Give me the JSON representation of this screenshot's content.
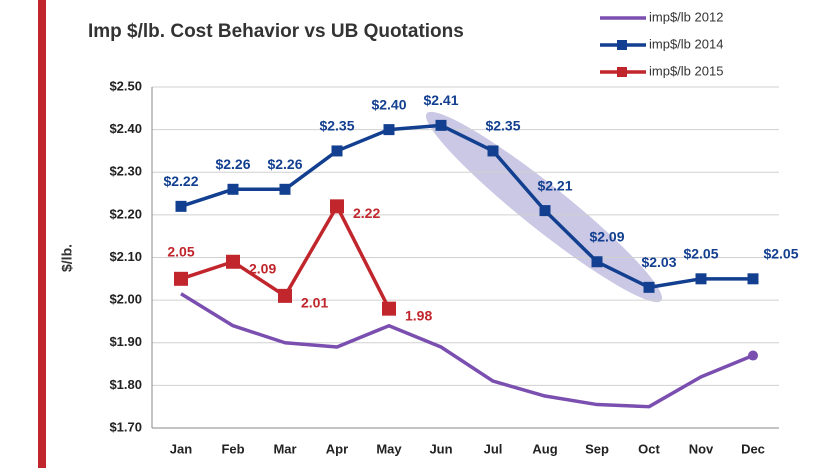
{
  "chart_data": {
    "type": "line",
    "title": "Imp $/lb. Cost Behavior vs UB Quotations",
    "y_label": "$/lb.",
    "categories": [
      "Jan",
      "Feb",
      "Mar",
      "Apr",
      "May",
      "Jun",
      "Jul",
      "Aug",
      "Sep",
      "Oct",
      "Nov",
      "Dec"
    ],
    "series": [
      {
        "name": "imp$/lb 2012",
        "color": "#7b4fb0",
        "marker": "none",
        "values": [
          2.015,
          1.94,
          1.9,
          1.89,
          1.94,
          1.89,
          1.81,
          1.775,
          1.755,
          1.75,
          1.82,
          1.87
        ]
      },
      {
        "name": "imp$/lb 2014",
        "color": "#123f8f",
        "marker": "square",
        "values": [
          2.22,
          2.26,
          2.26,
          2.35,
          2.4,
          2.41,
          2.35,
          2.21,
          2.09,
          2.03,
          2.05,
          2.05
        ],
        "value_labels": [
          "$2.22",
          "$2.26",
          "$2.26",
          "$2.35",
          "$2.40",
          "$2.41",
          "$2.35",
          "$2.21",
          "$2.09",
          "$2.03",
          "$2.05",
          "$2.05"
        ]
      },
      {
        "name": "imp$/lb 2015",
        "color": "#c0262c",
        "marker": "square",
        "values": [
          2.05,
          2.09,
          2.01,
          2.22,
          1.98,
          null,
          null,
          null,
          null,
          null,
          null,
          null
        ],
        "value_labels": [
          "2.05",
          "2.09",
          "2.01",
          "2.22",
          "1.98",
          null,
          null,
          null,
          null,
          null,
          null,
          null
        ]
      }
    ],
    "ylim": [
      1.7,
      2.5
    ],
    "yticks": [
      {
        "value": 1.7,
        "label": "$1.70"
      },
      {
        "value": 1.8,
        "label": "$1.80"
      },
      {
        "value": 1.9,
        "label": "$1.90"
      },
      {
        "value": 2.0,
        "label": "$2.00"
      },
      {
        "value": 2.1,
        "label": "$2.10"
      },
      {
        "value": 2.2,
        "label": "$2.20"
      },
      {
        "value": 2.3,
        "label": "$2.30"
      },
      {
        "value": 2.4,
        "label": "$2.40"
      },
      {
        "value": 2.5,
        "label": "$2.50"
      }
    ],
    "grid": true,
    "legend": "upper right"
  }
}
